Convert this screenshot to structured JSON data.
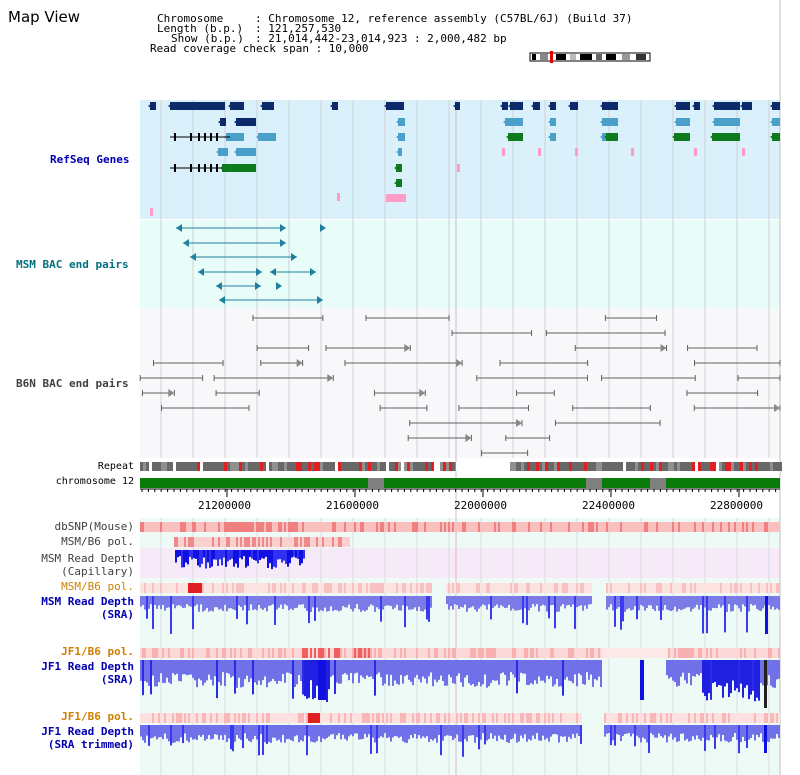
{
  "header": {
    "title": "Map View",
    "chromosome_label": "Chromosome",
    "chromosome_value": ": Chromosome 12, reference assembly (C57BL/6J) (Build 37)",
    "length_label": "Length (b.p.)",
    "length_value": ": 121,257,530",
    "show_label": "Show (b.p.)",
    "show_value": ": 21,014,442-23,014,923 : 2,000,482 bp",
    "coverage_text": "Read coverage check span : 10,000"
  },
  "tracks": {
    "refseq": "RefSeq Genes",
    "msm_bac": "MSM BAC end pairs",
    "b6n_bac": "B6N BAC end pairs",
    "repeat": "Repeat",
    "chromosome": "chromosome 12",
    "dbsnp": "dbSNP(Mouse)",
    "msm_b6_pol_1": "MSM/B6 pol.",
    "msm_read_cap_1": "MSM Read Depth",
    "msm_read_cap_2": "(Capillary)",
    "msm_b6_pol_2": "MSM/B6 pol.",
    "msm_read_sra_1": "MSM Read Depth",
    "msm_read_sra_2": "(SRA)",
    "jf1_b6_pol_1": "JF1/B6 pol.",
    "jf1_read_sra_1": "JF1 Read Depth",
    "jf1_read_sra_2": "(SRA)",
    "jf1_b6_pol_2": "JF1/B6 pol.",
    "jf1_read_trim_1": "JF1 Read Depth",
    "jf1_read_trim_2": "(SRA trimmed)"
  },
  "axis": {
    "ticks": [
      "21200000",
      "21600000",
      "22000000",
      "22400000",
      "22800000"
    ]
  },
  "colors": {
    "refseq_bg": "#daf0fa",
    "msm_bac_bg": "#e8fdf8",
    "b6n_bg": "#f8f8fa",
    "gene_dark": "#0d2b6b",
    "gene_mid": "#4aa0c8",
    "gene_green": "#0e7a1e",
    "gene_pink": "#ff9cc8",
    "bac_teal": "#1f7fa0",
    "b6n_gray": "#555555",
    "chrom_green": "#0a7a0a",
    "depth_blue": "#1a1adc",
    "depth_light": "#7878e8",
    "snp_pink": "#f4a0a0",
    "label_blue": "#0000b0",
    "label_orange": "#d08000",
    "label_teal": "#007080"
  }
}
